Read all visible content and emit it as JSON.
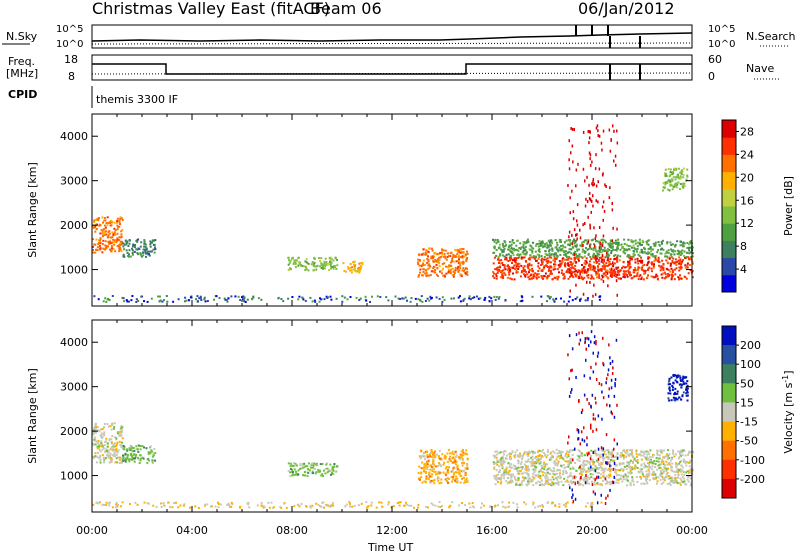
{
  "header": {
    "title": "Christmas Valley East (fitACF)",
    "beam": "Beam 06",
    "date": "06/Jan/2012"
  },
  "panels": {
    "nsky_label": "N.Sky",
    "nsearch_label": "N.Search",
    "freq_label_1": "Freq.",
    "freq_label_2": "[MHz]",
    "nave_label": "Nave",
    "cpid_label": "CPID",
    "cpid_value": "themis 3300 IF",
    "nsky_ticks": [
      "10^5",
      "10^0"
    ],
    "nsearch_ticks": [
      "10^5",
      "10^0"
    ],
    "freq_ticks": [
      "18",
      "8"
    ],
    "nave_ticks": [
      "60",
      "0"
    ]
  },
  "chart_data": [
    {
      "type": "heatmap",
      "name": "power",
      "xlabel": "Time UT",
      "ylabel": "Slant Range [km]",
      "x_ticks": [
        "00:00",
        "04:00",
        "08:00",
        "12:00",
        "16:00",
        "20:00",
        "00:00"
      ],
      "xlim": [
        0,
        24
      ],
      "y_ticks": [
        1000,
        2000,
        3000,
        4000
      ],
      "ylim": [
        180,
        4500
      ],
      "colorbar": {
        "label": "Power [dB]",
        "ticks": [
          4,
          8,
          12,
          16,
          20,
          24,
          28
        ],
        "range": [
          0,
          30
        ],
        "colors": [
          "#0000dd",
          "#2a48a8",
          "#3c8060",
          "#4fa040",
          "#7fc040",
          "#c0d040",
          "#ffb000",
          "#ff7000",
          "#ff3000",
          "#dd0000"
        ]
      },
      "echo_regions": [
        {
          "t0": 0.0,
          "t1": 1.2,
          "r0": 1400,
          "r1": 2200,
          "level": 22
        },
        {
          "t0": 1.2,
          "t1": 2.5,
          "r0": 1300,
          "r1": 1700,
          "level": 7
        },
        {
          "t0": 7.8,
          "t1": 9.8,
          "r0": 1000,
          "r1": 1300,
          "level": 12
        },
        {
          "t0": 10.0,
          "t1": 10.8,
          "r0": 950,
          "r1": 1200,
          "level": 18
        },
        {
          "t0": 13.0,
          "t1": 15.0,
          "r0": 850,
          "r1": 1500,
          "level": 22
        },
        {
          "t0": 16.0,
          "t1": 24.0,
          "r0": 800,
          "r1": 1300,
          "level": 26
        },
        {
          "t0": 16.0,
          "t1": 24.0,
          "r0": 1300,
          "r1": 1700,
          "level": 10
        },
        {
          "t0": 22.8,
          "t1": 23.8,
          "r0": 2800,
          "r1": 3300,
          "level": 12
        }
      ]
    },
    {
      "type": "heatmap",
      "name": "velocity",
      "xlabel": "Time UT",
      "ylabel": "Slant Range [km]",
      "x_ticks": [
        "00:00",
        "04:00",
        "08:00",
        "12:00",
        "16:00",
        "20:00",
        "00:00"
      ],
      "xlim": [
        0,
        24
      ],
      "y_ticks": [
        1000,
        2000,
        3000,
        4000
      ],
      "ylim": [
        180,
        4500
      ],
      "colorbar": {
        "label": "Velocity [m s",
        "label_exp": "-1",
        "ticks": [
          200,
          100,
          50,
          15,
          -15,
          -50,
          -100,
          -200
        ],
        "colors": [
          "#0010c0",
          "#2850a0",
          "#3c8060",
          "#70c040",
          "#c8c8b8",
          "#ffb000",
          "#ff7000",
          "#ff3000",
          "#dd0000"
        ]
      },
      "echo_regions": [
        {
          "t0": 0.0,
          "t1": 1.2,
          "r0": 1300,
          "r1": 2200,
          "velocity": 0
        },
        {
          "t0": 1.2,
          "t1": 2.5,
          "r0": 1300,
          "r1": 1700,
          "velocity": 40
        },
        {
          "t0": 7.8,
          "t1": 9.8,
          "r0": 1000,
          "r1": 1300,
          "velocity": 30
        },
        {
          "t0": 13.0,
          "t1": 15.0,
          "r0": 850,
          "r1": 1600,
          "velocity": -40
        },
        {
          "t0": 16.0,
          "t1": 24.0,
          "r0": 800,
          "r1": 1600,
          "velocity": 0
        },
        {
          "t0": 23.0,
          "t1": 23.8,
          "r0": 2700,
          "r1": 3300,
          "velocity": 220
        }
      ]
    }
  ]
}
